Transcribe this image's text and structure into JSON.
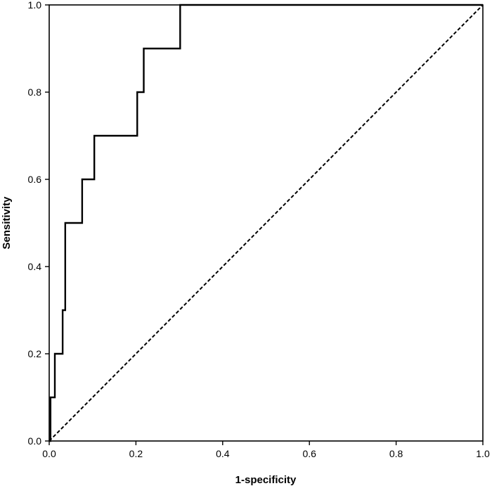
{
  "chart_data": {
    "type": "line",
    "title": "",
    "xlabel": "1-specificity",
    "ylabel": "Sensitivity",
    "xlim": [
      0.0,
      1.0
    ],
    "ylim": [
      0.0,
      1.0
    ],
    "grid": false,
    "x_ticks": [
      "0.0",
      "0.2",
      "0.4",
      "0.6",
      "0.8",
      "1.0"
    ],
    "y_ticks": [
      "0.0",
      "0.2",
      "0.4",
      "0.6",
      "0.8",
      "1.0"
    ],
    "series": [
      {
        "style": "solid",
        "color": "#000000",
        "x": [
          0.0,
          0.003,
          0.003,
          0.007,
          0.007,
          0.013,
          0.013,
          0.031,
          0.031,
          0.037,
          0.037,
          0.076,
          0.076,
          0.104,
          0.104,
          0.203,
          0.203,
          0.218,
          0.218,
          0.302,
          0.302,
          0.5,
          1.0
        ],
        "y": [
          0.0,
          0.0,
          0.1,
          0.1,
          0.1,
          0.1,
          0.2,
          0.2,
          0.3,
          0.3,
          0.5,
          0.5,
          0.6,
          0.6,
          0.7,
          0.7,
          0.8,
          0.8,
          0.9,
          0.9,
          1.0,
          1.0,
          1.0
        ]
      },
      {
        "style": "dashed",
        "color": "#000000",
        "x": [
          0.0,
          1.0
        ],
        "y": [
          0.0,
          1.0
        ]
      }
    ]
  }
}
